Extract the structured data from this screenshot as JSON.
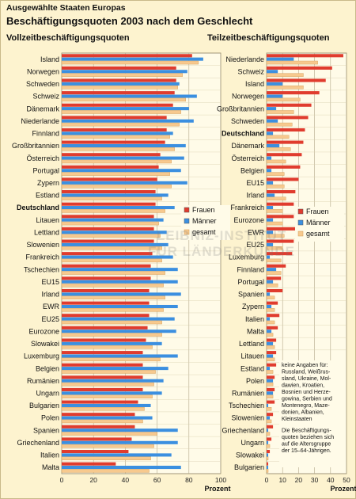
{
  "header": {
    "supertitle": "Ausgewählte Staaten Europas",
    "title": "Beschäftigungsquoten 2003 nach dem Geschlecht"
  },
  "watermark": {
    "line1": "LEIBNIZ-INSTITUT",
    "line2": "FÜR LÄNDERKUNDE"
  },
  "colors": {
    "frauen": "#e03c2e",
    "maenner": "#3b8fe0",
    "gesamt": "#f7c98e",
    "gesamt_edge": "#d09a55",
    "grid": "#b3a88a"
  },
  "note": {
    "lines": [
      "keine Angaben für:",
      "Russland, Weißrus-",
      "sland, Ukraine, Mol-",
      "dawien, Kroatien,",
      "Bosnien und Herze-",
      "gowina, Serbien und",
      "Montenegro, Maze-",
      "donien, Albanien,",
      "Kleinstaaten"
    ],
    "lines2": [
      "Die Beschäftigungs-",
      "quoten beziehen sich",
      "auf die Altersgruppe",
      "der 15–64-Jährigen."
    ]
  },
  "chart_data": [
    {
      "type": "bar",
      "title": "Vollzeitbeschäftigungsquoten",
      "xlabel": "Prozent",
      "xlim": [
        0,
        100
      ],
      "xticks": [
        0,
        20,
        40,
        60,
        80,
        100
      ],
      "legend": "right, middle",
      "bold_category": "Deutschland",
      "categories": [
        "Island",
        "Norwegen",
        "Schweden",
        "Schweiz",
        "Dänemark",
        "Niederlande",
        "Finnland",
        "Großbritannien",
        "Österreich",
        "Portugal",
        "Zypern",
        "Estland",
        "Deutschland",
        "Litauen",
        "Lettland",
        "Slowenien",
        "Frankreich",
        "Tschechien",
        "EU15",
        "Irland",
        "EWR",
        "EU25",
        "Eurozone",
        "Slowakei",
        "Luxemburg",
        "Belgien",
        "Rumänien",
        "Ungarn",
        "Bulgarien",
        "Polen",
        "Spanien",
        "Griechenland",
        "Italien",
        "Malta"
      ],
      "series": [
        {
          "name": "Frauen",
          "values": [
            82,
            72,
            72,
            71,
            70,
            66,
            66,
            65,
            62,
            61,
            60,
            59,
            59,
            58,
            58,
            58,
            57,
            56,
            56,
            55,
            55,
            55,
            54,
            53,
            51,
            51,
            51,
            51,
            48,
            46,
            46,
            44,
            42,
            34
          ]
        },
        {
          "name": "Männer",
          "values": [
            89,
            79,
            74,
            85,
            80,
            83,
            70,
            78,
            77,
            75,
            79,
            67,
            71,
            64,
            66,
            67,
            70,
            73,
            73,
            75,
            73,
            71,
            72,
            63,
            73,
            67,
            64,
            63,
            56,
            57,
            73,
            73,
            69,
            75
          ]
        },
        {
          "name": "gesamt",
          "values": [
            86,
            76,
            73,
            78,
            75,
            74,
            68,
            71,
            69,
            68,
            69,
            63,
            65,
            61,
            62,
            63,
            63,
            65,
            64,
            65,
            64,
            63,
            63,
            57,
            62,
            59,
            58,
            57,
            52,
            51,
            60,
            58,
            56,
            55
          ]
        }
      ]
    },
    {
      "type": "bar",
      "title": "Teilzeitbeschäftigungsquoten",
      "xlabel": "Prozent",
      "xlim": [
        0,
        50
      ],
      "xticks": [
        0,
        10,
        20,
        30,
        40,
        50
      ],
      "legend": "left, middle",
      "bold_category": "Deutschland",
      "categories": [
        "Niederlande",
        "Schweiz",
        "Island",
        "Norwegen",
        "Großbritannien",
        "Schweden",
        "Deutschland",
        "Dänemark",
        "Österreich",
        "Belgien",
        "EU15",
        "Irland",
        "Frankreich",
        "Eurozone",
        "EWR",
        "EU25",
        "Luxemburg",
        "Finnland",
        "Portugal",
        "Spanien",
        "Zypern",
        "Italien",
        "Malta",
        "Lettland",
        "Litauen",
        "Estland",
        "Polen",
        "Rumänien",
        "Tschechien",
        "Slowenien",
        "Griechenland",
        "Ungarn",
        "Slowakei",
        "Bulgarien"
      ],
      "series": [
        {
          "name": "Frauen",
          "values": [
            48,
            41,
            37,
            33,
            28,
            26,
            24,
            23,
            22,
            21,
            20,
            18,
            17,
            17,
            18,
            17,
            16,
            12,
            9,
            10,
            7,
            8,
            7,
            6,
            6,
            6,
            5,
            5,
            5,
            4,
            4,
            3,
            2,
            1
          ]
        },
        {
          "name": "Männer",
          "values": [
            17,
            7,
            10,
            10,
            6,
            7,
            4,
            8,
            3,
            3,
            4,
            5,
            4,
            4,
            4,
            4,
            2,
            6,
            4,
            2,
            3,
            2,
            3,
            4,
            4,
            2,
            4,
            4,
            1,
            2,
            1,
            1,
            1,
            1
          ]
        },
        {
          "name": "gesamt",
          "values": [
            32,
            23,
            23,
            21,
            17,
            16,
            14,
            15,
            12,
            11,
            11,
            12,
            10,
            10,
            11,
            10,
            9,
            9,
            7,
            5,
            5,
            5,
            4,
            5,
            5,
            4,
            4,
            4,
            3,
            3,
            2,
            2,
            1,
            1
          ]
        }
      ]
    }
  ]
}
